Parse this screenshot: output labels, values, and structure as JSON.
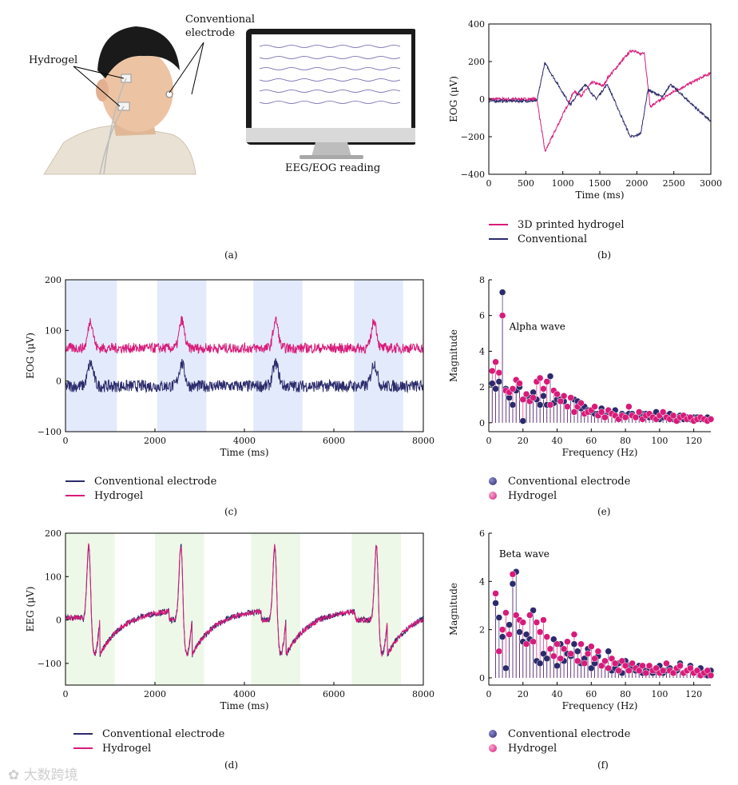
{
  "colors": {
    "conv": "#2b2a6b",
    "hydro": "#d81b7a",
    "shade_blue": "#e3eafb",
    "shade_green": "#eef8e8"
  },
  "panel_a": {
    "letter": "(a)",
    "labels": {
      "conventional": "Conventional electrode",
      "hydrogel": "Hydrogel",
      "reading": "EEG/EOG reading"
    }
  },
  "watermark": "大数跨境",
  "chart_data": [
    {
      "id": "b",
      "type": "line",
      "letter": "(b)",
      "ylabel": "EOG (μV)",
      "xlabel": "Time (ms)",
      "xlim": [
        0,
        3000
      ],
      "ylim": [
        -400,
        400
      ],
      "xticks": [
        0,
        500,
        1000,
        1500,
        2000,
        2500,
        3000
      ],
      "yticks": [
        -400,
        -200,
        0,
        200,
        400
      ],
      "series": [
        {
          "name": "3D printed hydrogel",
          "color": "hydro"
        },
        {
          "name": "Conventional",
          "color": "conv"
        }
      ]
    },
    {
      "id": "c",
      "type": "line",
      "letter": "(c)",
      "ylabel": "EOG (μV)",
      "xlabel": "Time (ms)",
      "xlim": [
        0,
        8000
      ],
      "ylim": [
        -100,
        200
      ],
      "xticks": [
        0,
        2000,
        4000,
        6000,
        8000
      ],
      "yticks": [
        -100,
        0,
        100,
        200
      ],
      "shade": [
        [
          0,
          1150
        ],
        [
          2050,
          3150
        ],
        [
          4200,
          5300
        ],
        [
          6450,
          7550
        ]
      ],
      "series": [
        {
          "name": "Conventional electrode",
          "color": "conv"
        },
        {
          "name": "Hydrogel",
          "color": "hydro"
        }
      ]
    },
    {
      "id": "d",
      "type": "line",
      "letter": "(d)",
      "ylabel": "EEG (μV)",
      "xlabel": "Time (ms)",
      "xlim": [
        0,
        8000
      ],
      "ylim": [
        -150,
        200
      ],
      "xticks": [
        0,
        2000,
        4000,
        6000,
        8000
      ],
      "yticks": [
        -100,
        0,
        100,
        200
      ],
      "shade": [
        [
          0,
          1100
        ],
        [
          2000,
          3100
        ],
        [
          4150,
          5250
        ],
        [
          6400,
          7500
        ]
      ],
      "series": [
        {
          "name": "Conventional electrode",
          "color": "conv"
        },
        {
          "name": "Hydrogel",
          "color": "hydro"
        }
      ]
    },
    {
      "id": "e",
      "type": "scatter",
      "letter": "(e)",
      "ylabel": "Magnitude",
      "xlabel": "Frequency (Hz)",
      "xlim": [
        0,
        130
      ],
      "ylim": [
        -0.5,
        8
      ],
      "xticks": [
        0,
        20,
        40,
        60,
        80,
        100,
        120
      ],
      "yticks": [
        0,
        2,
        4,
        6,
        8
      ],
      "annotation": "Alpha wave",
      "series": [
        {
          "name": "Conventional electrode",
          "color": "conv",
          "x": [
            2,
            4,
            6,
            8,
            10,
            12,
            14,
            16,
            18,
            20,
            22,
            24,
            26,
            28,
            30,
            32,
            34,
            36,
            38,
            40,
            42,
            44,
            46,
            48,
            50,
            52,
            54,
            56,
            58,
            60,
            62,
            64,
            66,
            68,
            70,
            72,
            74,
            76,
            78,
            80,
            82,
            84,
            86,
            88,
            90,
            92,
            94,
            96,
            98,
            100,
            102,
            104,
            106,
            108,
            110,
            112,
            114,
            116,
            118,
            120,
            122,
            124,
            126,
            128,
            130
          ],
          "values": [
            2.2,
            1.9,
            2.3,
            7.3,
            1.9,
            1.4,
            1.0,
            1.8,
            2.0,
            0.1,
            1.5,
            1.4,
            1.7,
            1.3,
            1.0,
            1.5,
            1.0,
            2.6,
            1.1,
            1.3,
            1.3,
            1.2,
            0.9,
            1.4,
            1.3,
            1.2,
            0.8,
            0.9,
            0.7,
            0.6,
            0.5,
            0.5,
            0.8,
            0.4,
            0.6,
            0.5,
            0.7,
            0.3,
            0.5,
            0.4,
            0.5,
            0.5,
            0.3,
            0.4,
            0.5,
            0.5,
            0.3,
            0.4,
            0.6,
            0.2,
            0.3,
            0.4,
            0.5,
            0.2,
            0.3,
            0.4,
            0.2,
            0.3,
            0.2,
            0.3,
            0.3,
            0.2,
            0.2,
            0.3,
            0.2
          ]
        },
        {
          "name": "Hydrogel",
          "color": "hydro",
          "x": [
            2,
            4,
            6,
            8,
            10,
            12,
            14,
            16,
            18,
            20,
            22,
            24,
            26,
            28,
            30,
            32,
            34,
            36,
            38,
            40,
            42,
            44,
            46,
            48,
            50,
            52,
            54,
            56,
            58,
            60,
            62,
            64,
            66,
            68,
            70,
            72,
            74,
            76,
            78,
            80,
            82,
            84,
            86,
            88,
            90,
            92,
            94,
            96,
            98,
            100,
            102,
            104,
            106,
            108,
            110,
            112,
            114,
            116,
            118,
            120,
            122,
            124,
            126,
            128,
            130
          ],
          "values": [
            2.9,
            3.4,
            2.8,
            6.0,
            1.8,
            1.7,
            1.9,
            2.4,
            2.2,
            1.3,
            1.6,
            1.2,
            1.4,
            2.3,
            2.5,
            1.9,
            2.3,
            1.0,
            1.8,
            1.6,
            1.2,
            1.5,
            0.9,
            1.4,
            0.6,
            0.9,
            1.1,
            0.5,
            0.6,
            0.7,
            0.9,
            0.4,
            0.6,
            0.3,
            0.7,
            0.5,
            0.4,
            0.2,
            0.4,
            0.3,
            0.9,
            0.4,
            0.3,
            0.6,
            0.2,
            0.4,
            0.5,
            0.3,
            0.2,
            0.4,
            0.6,
            0.3,
            0.2,
            0.4,
            0.1,
            0.3,
            0.4,
            0.2,
            0.3,
            0.1,
            0.2,
            0.3,
            0.2,
            0.1,
            0.2
          ]
        }
      ]
    },
    {
      "id": "f",
      "type": "scatter",
      "letter": "(f)",
      "ylabel": "Magnitude",
      "xlabel": "Frequency (Hz)",
      "xlim": [
        0,
        130
      ],
      "ylim": [
        -0.3,
        6
      ],
      "xticks": [
        0,
        20,
        40,
        60,
        80,
        100,
        120
      ],
      "yticks": [
        0,
        2,
        4,
        6
      ],
      "annotation": "Beta wave",
      "series": [
        {
          "name": "Conventional electrode",
          "color": "conv",
          "x": [
            4,
            6,
            8,
            10,
            12,
            14,
            16,
            18,
            20,
            22,
            24,
            26,
            28,
            30,
            32,
            34,
            36,
            38,
            40,
            42,
            44,
            46,
            48,
            50,
            52,
            54,
            56,
            58,
            60,
            62,
            64,
            66,
            68,
            70,
            72,
            74,
            76,
            78,
            80,
            82,
            84,
            86,
            88,
            90,
            92,
            94,
            96,
            98,
            100,
            102,
            104,
            106,
            108,
            110,
            112,
            114,
            116,
            118,
            120,
            122,
            124,
            126,
            128,
            130
          ],
          "values": [
            3.1,
            2.5,
            1.7,
            0.4,
            2.2,
            3.9,
            4.4,
            1.9,
            1.5,
            1.8,
            1.6,
            2.8,
            0.7,
            0.6,
            1.0,
            0.8,
            1.2,
            1.6,
            0.5,
            1.4,
            0.7,
            1.0,
            0.9,
            1.4,
            1.1,
            0.6,
            0.8,
            1.2,
            0.4,
            0.6,
            0.9,
            0.5,
            0.7,
            1.1,
            0.3,
            0.4,
            0.6,
            0.2,
            0.7,
            0.5,
            0.4,
            0.3,
            0.5,
            0.2,
            0.3,
            0.4,
            0.2,
            0.3,
            0.5,
            0.2,
            0.3,
            0.4,
            0.2,
            0.3,
            0.6,
            0.2,
            0.3,
            0.5,
            0.2,
            0.3,
            0.4,
            0.2,
            0.1,
            0.3
          ]
        },
        {
          "name": "Hydrogel",
          "color": "hydro",
          "x": [
            4,
            6,
            8,
            10,
            12,
            14,
            16,
            18,
            20,
            22,
            24,
            26,
            28,
            30,
            32,
            34,
            36,
            38,
            40,
            42,
            44,
            46,
            48,
            50,
            52,
            54,
            56,
            58,
            60,
            62,
            64,
            66,
            68,
            70,
            72,
            74,
            76,
            78,
            80,
            82,
            84,
            86,
            88,
            90,
            92,
            94,
            96,
            98,
            100,
            102,
            104,
            106,
            108,
            110,
            112,
            114,
            116,
            118,
            120,
            122,
            124,
            126,
            128,
            130
          ],
          "values": [
            3.5,
            1.1,
            2.0,
            2.7,
            1.8,
            4.3,
            2.6,
            2.4,
            2.3,
            1.4,
            2.6,
            1.5,
            2.3,
            1.9,
            2.4,
            1.7,
            1.2,
            0.9,
            1.4,
            0.8,
            1.2,
            1.5,
            1.0,
            1.8,
            0.7,
            1.4,
            0.6,
            1.0,
            1.3,
            0.8,
            1.1,
            0.5,
            0.7,
            0.4,
            0.8,
            0.6,
            0.3,
            0.7,
            0.5,
            0.3,
            0.6,
            0.4,
            0.3,
            0.5,
            0.2,
            0.5,
            0.3,
            0.4,
            0.2,
            0.3,
            0.6,
            0.3,
            0.2,
            0.4,
            0.5,
            0.2,
            0.3,
            0.4,
            0.2,
            0.3,
            0.1,
            0.2,
            0.3,
            0.1
          ]
        }
      ]
    }
  ]
}
